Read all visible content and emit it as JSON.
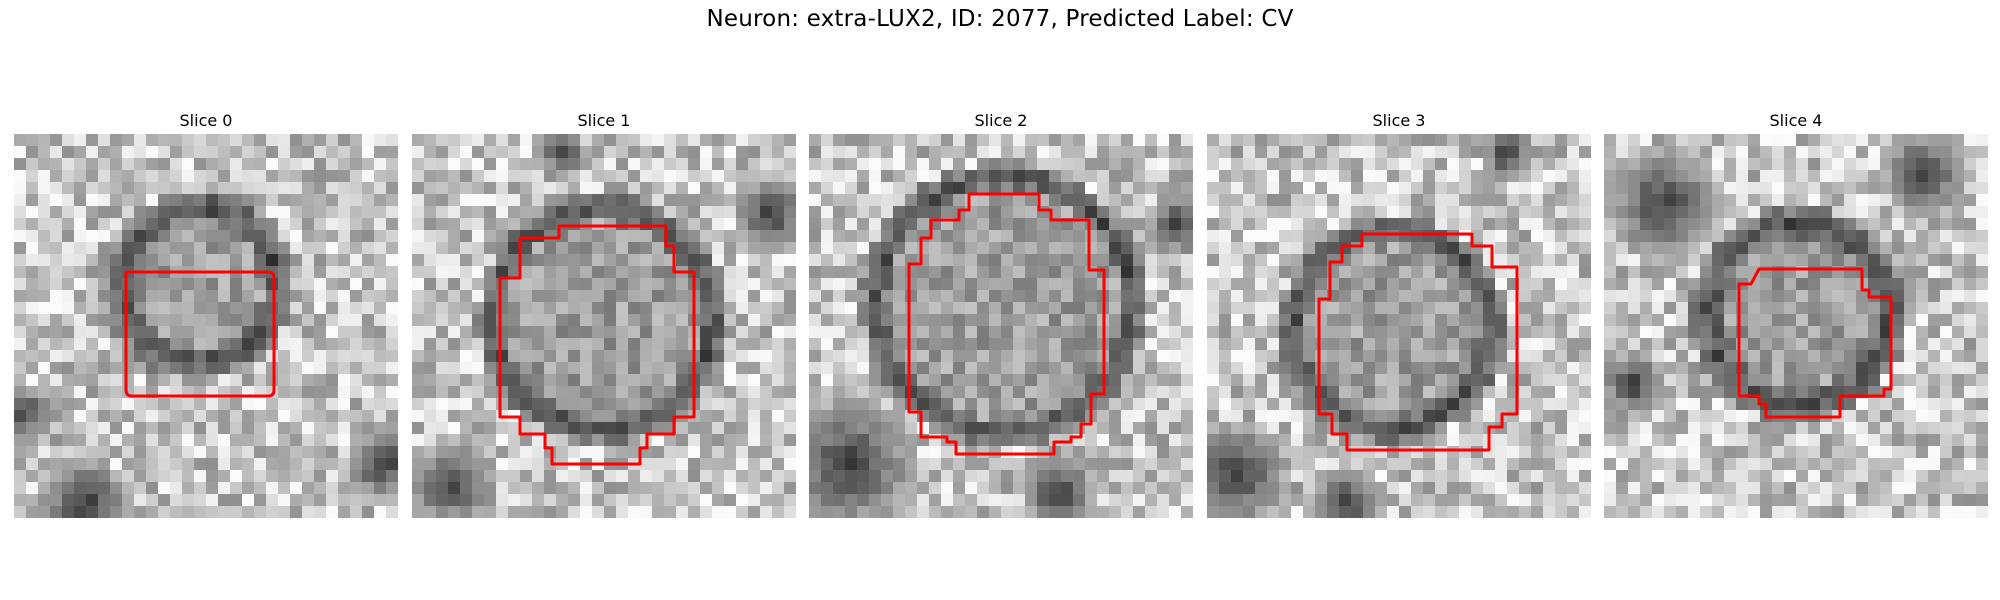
{
  "figure": {
    "title": "Neuron: extra-LUX2, ID: 2077, Predicted Label: CV"
  },
  "panels": [
    {
      "title": "Slice 0"
    },
    {
      "title": "Slice 1"
    },
    {
      "title": "Slice 2"
    },
    {
      "title": "Slice 3"
    },
    {
      "title": "Slice 4"
    }
  ],
  "colors": {
    "contour": "#ff0000",
    "background": "#ffffff"
  }
}
